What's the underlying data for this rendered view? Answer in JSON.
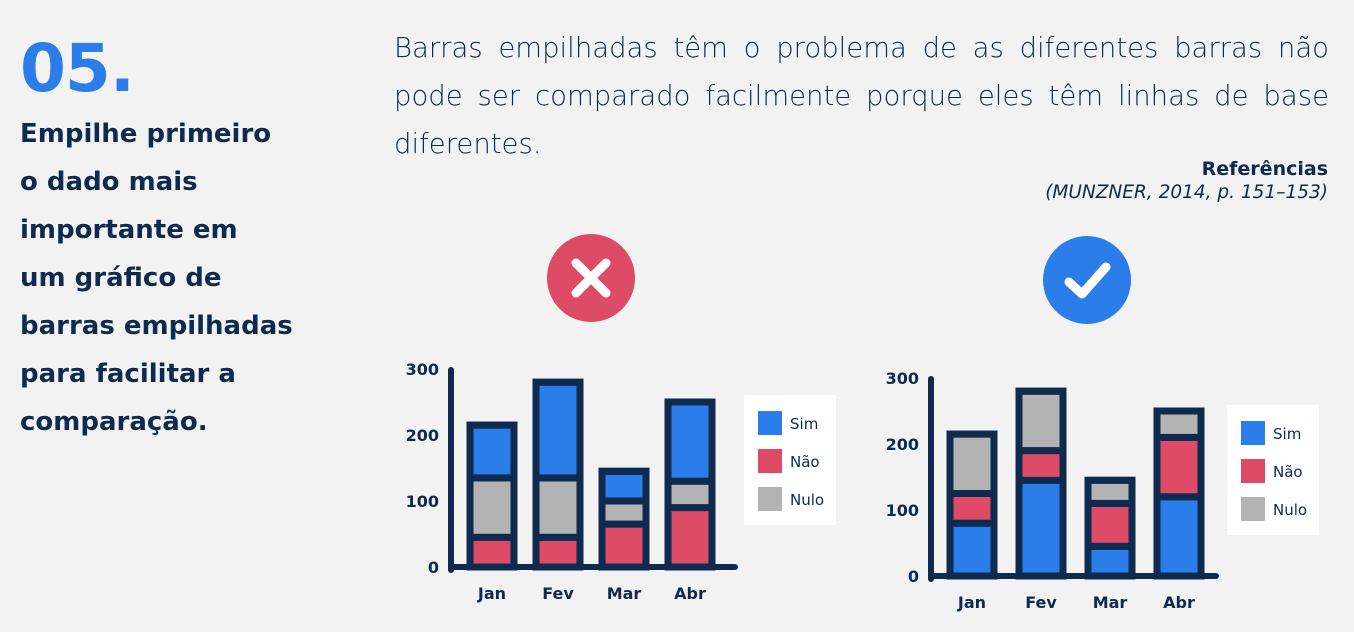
{
  "heading": {
    "number": "05.",
    "lines": [
      "Empilhe primeiro",
      "o dado mais",
      "importante em",
      "um gráfico de",
      "barras empilhadas",
      "para facilitar a",
      "comparação."
    ]
  },
  "description": "Barras empilhadas têm o problema de as diferentes barras não pode ser comparado facilmente porque eles têm linhas de base diferentes.",
  "reference": {
    "title": "Referências",
    "citation": "(MUNZNER, 2014, p. 151–153)"
  },
  "badges": {
    "wrong": {
      "icon": "x-mark-icon",
      "color": "#dd4b67"
    },
    "right": {
      "icon": "check-mark-icon",
      "color": "#2b7de9"
    }
  },
  "colors": {
    "sim": "#2b7de9",
    "nao": "#dd4b67",
    "nulo": "#b3b3b3",
    "frame": "#0e2a4f"
  },
  "chart_data": [
    {
      "type": "bar",
      "stacked": true,
      "categories": [
        "Jan",
        "Fev",
        "Mar",
        "Abr"
      ],
      "stack_order_bottom_to_top": [
        "Não",
        "Nulo",
        "Sim"
      ],
      "series": [
        {
          "name": "Sim",
          "values": [
            80,
            145,
            45,
            120
          ]
        },
        {
          "name": "Não",
          "values": [
            45,
            45,
            65,
            90
          ]
        },
        {
          "name": "Nulo",
          "values": [
            90,
            90,
            35,
            40
          ]
        }
      ],
      "yticks": [
        0,
        100,
        200,
        300
      ],
      "ylim": [
        0,
        300
      ],
      "legend": [
        "Sim",
        "Não",
        "Nulo"
      ],
      "legend_position": "right"
    },
    {
      "type": "bar",
      "stacked": true,
      "categories": [
        "Jan",
        "Fev",
        "Mar",
        "Abr"
      ],
      "stack_order_bottom_to_top": [
        "Sim",
        "Não",
        "Nulo"
      ],
      "series": [
        {
          "name": "Sim",
          "values": [
            80,
            145,
            45,
            120
          ]
        },
        {
          "name": "Não",
          "values": [
            45,
            45,
            65,
            90
          ]
        },
        {
          "name": "Nulo",
          "values": [
            90,
            90,
            35,
            40
          ]
        }
      ],
      "yticks": [
        0,
        100,
        200,
        300
      ],
      "ylim": [
        0,
        300
      ],
      "legend": [
        "Sim",
        "Não",
        "Nulo"
      ],
      "legend_position": "right"
    }
  ]
}
